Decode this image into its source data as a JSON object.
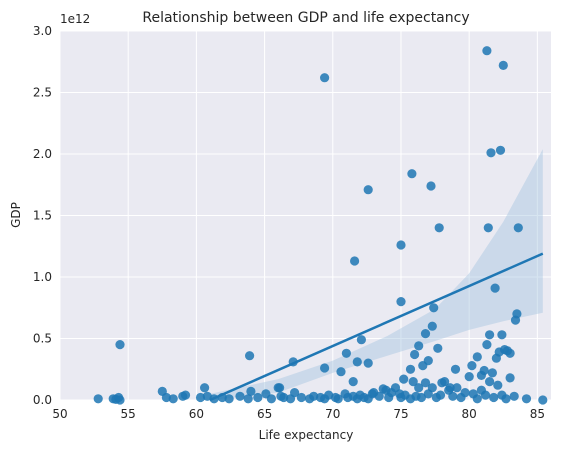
{
  "chart_data": {
    "type": "scatter",
    "title": "Relationship between GDP and life expectancy",
    "xlabel": "Life expectancy",
    "ylabel": "GDP",
    "offset_label": "1e12",
    "xlim": [
      50,
      86
    ],
    "ylim": [
      0,
      3.0
    ],
    "y_scale_factor": 1000000000000.0,
    "x_ticks": [
      50,
      55,
      60,
      65,
      70,
      75,
      80,
      85
    ],
    "y_ticks": [
      0.0,
      0.5,
      1.0,
      1.5,
      2.0,
      2.5,
      3.0
    ],
    "y_tick_labels": [
      "0.0",
      "0.5",
      "1.0",
      "1.5",
      "2.0",
      "2.5",
      "3.0"
    ],
    "grid": true,
    "style": "seaborn-darkgrid",
    "colors": {
      "background": "#eaeaf2",
      "grid": "#ffffff",
      "points": "#1f77b4",
      "ci_band": "#a6c5e0"
    },
    "regression": {
      "line": {
        "x": [
          61.0,
          85.4
        ],
        "y": [
          0.0,
          1.19
        ]
      },
      "ci_upper": [
        [
          61.0,
          0.05
        ],
        [
          66.0,
          0.17
        ],
        [
          70.0,
          0.32
        ],
        [
          74.0,
          0.52
        ],
        [
          77.5,
          0.74
        ],
        [
          80.0,
          1.03
        ],
        [
          82.5,
          1.45
        ],
        [
          85.4,
          2.04
        ]
      ],
      "ci_lower": [
        [
          61.0,
          -0.05
        ],
        [
          66.0,
          0.06
        ],
        [
          70.0,
          0.22
        ],
        [
          74.0,
          0.36
        ],
        [
          77.5,
          0.48
        ],
        [
          80.0,
          0.57
        ],
        [
          82.5,
          0.64
        ],
        [
          85.4,
          0.71
        ]
      ]
    },
    "points": {
      "x": [
        52.8,
        53.9,
        54.1,
        54.3,
        54.4,
        57.5,
        57.8,
        58.3,
        59.0,
        59.2,
        60.3,
        60.6,
        60.8,
        61.3,
        61.9,
        62.4,
        63.2,
        63.8,
        64.0,
        64.5,
        65.1,
        65.5,
        66.1,
        66.2,
        66.4,
        66.9,
        67.2,
        67.7,
        68.3,
        68.6,
        69.1,
        69.4,
        69.7,
        70.2,
        70.4,
        70.9,
        71.1,
        71.5,
        71.8,
        72.0,
        72.3,
        72.6,
        72.9,
        73.4,
        73.7,
        74.1,
        74.6,
        74.9,
        75.0,
        75.3,
        75.7,
        75.9,
        76.1,
        76.3,
        76.5,
        76.8,
        77.0,
        77.3,
        77.6,
        77.9,
        78.2,
        78.5,
        78.8,
        79.1,
        79.4,
        79.7,
        80.0,
        80.3,
        80.6,
        80.9,
        81.2,
        81.5,
        81.8,
        82.1,
        82.4,
        82.7,
        83.0,
        83.3,
        84.2,
        85.4,
        54.4,
        63.9,
        66.0,
        67.1,
        69.4,
        70.6,
        71.0,
        71.5,
        71.6,
        71.8,
        72.1,
        72.6,
        73.0,
        73.9,
        74.3,
        75.0,
        75.0,
        75.2,
        75.7,
        76.0,
        76.3,
        76.6,
        76.8,
        77.0,
        77.3,
        77.4,
        77.7,
        78.0,
        78.6,
        79.0,
        80.2,
        80.6,
        80.9,
        81.1,
        81.3,
        81.5,
        81.7,
        81.9,
        82.0,
        82.2,
        82.4,
        82.6,
        82.8,
        83.0,
        83.4,
        83.5,
        83.6,
        72.6,
        75.8,
        82.3,
        81.6,
        77.2,
        77.8,
        81.4
      ],
      "y": [
        0.01,
        0.01,
        0.005,
        0.02,
        0.0,
        0.07,
        0.02,
        0.01,
        0.03,
        0.04,
        0.02,
        0.1,
        0.03,
        0.01,
        0.02,
        0.01,
        0.03,
        0.01,
        0.07,
        0.02,
        0.05,
        0.01,
        0.1,
        0.03,
        0.02,
        0.01,
        0.06,
        0.02,
        0.01,
        0.03,
        0.02,
        0.01,
        0.04,
        0.02,
        0.01,
        0.05,
        0.02,
        0.03,
        0.01,
        0.04,
        0.02,
        0.01,
        0.05,
        0.03,
        0.09,
        0.02,
        0.1,
        0.05,
        0.02,
        0.04,
        0.01,
        0.15,
        0.03,
        0.1,
        0.02,
        0.14,
        0.05,
        0.1,
        0.02,
        0.04,
        0.15,
        0.08,
        0.03,
        0.1,
        0.02,
        0.06,
        0.19,
        0.05,
        0.01,
        0.08,
        0.04,
        0.15,
        0.02,
        0.12,
        0.04,
        0.01,
        0.18,
        0.03,
        0.01,
        0.0,
        0.45,
        0.36,
        0.1,
        0.31,
        0.26,
        0.23,
        0.38,
        0.15,
        1.13,
        0.31,
        0.49,
        0.3,
        0.06,
        0.08,
        0.06,
        1.26,
        0.8,
        0.17,
        0.25,
        0.37,
        0.44,
        0.28,
        0.54,
        0.32,
        0.6,
        0.75,
        0.42,
        0.14,
        0.1,
        0.25,
        0.28,
        0.35,
        0.2,
        0.24,
        0.45,
        0.53,
        0.22,
        0.91,
        0.34,
        0.39,
        0.53,
        0.41,
        0.4,
        0.38,
        0.65,
        0.7,
        1.4,
        1.71,
        1.84,
        2.03,
        2.01,
        1.74,
        1.4,
        1.4
      ]
    },
    "outliers": {
      "x": [
        69.4,
        81.3,
        82.5
      ],
      "y": [
        2.62,
        2.84,
        2.72
      ]
    }
  }
}
